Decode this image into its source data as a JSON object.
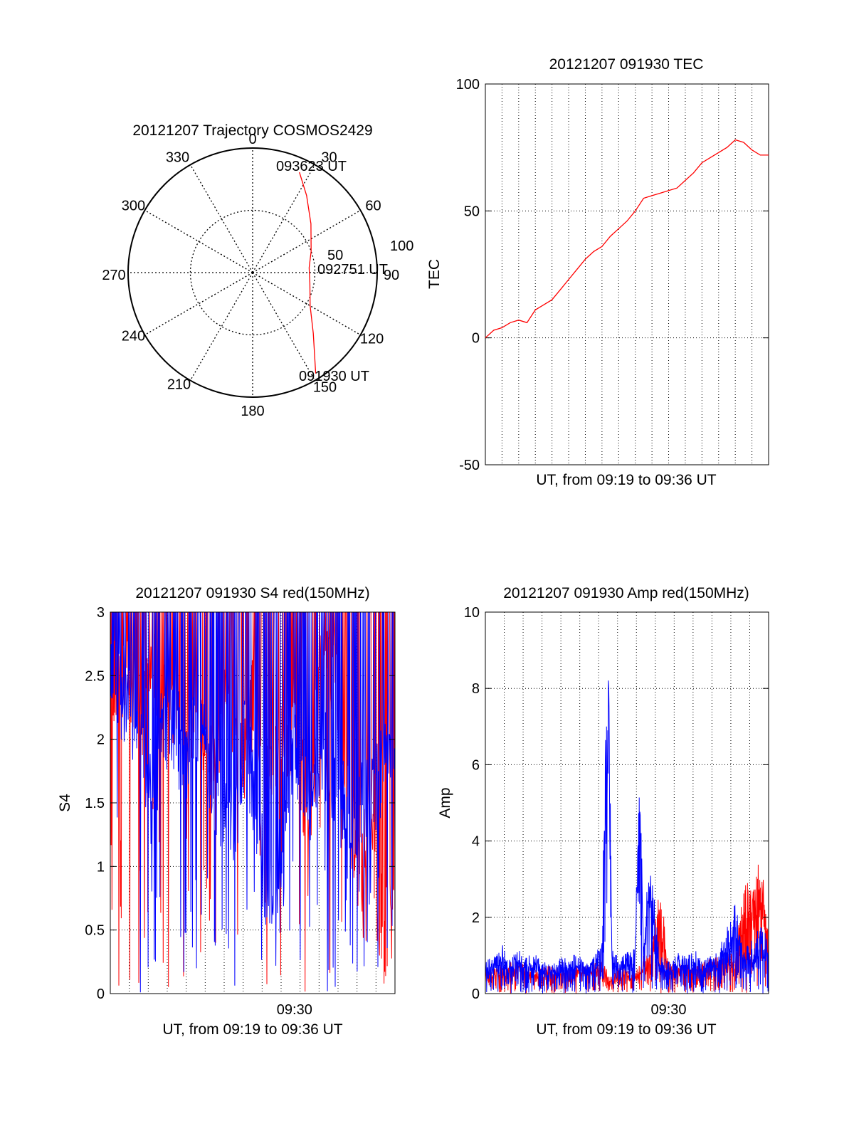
{
  "chart_data": [
    {
      "type": "polar",
      "title": "20121207 Trajectory COSMOS2429",
      "azimuth_labels": [
        "0",
        "30",
        "60",
        "90",
        "120",
        "150",
        "180",
        "210",
        "240",
        "270",
        "300",
        "330"
      ],
      "radial_labels": [
        "50",
        "100"
      ],
      "radial_max": 100,
      "track": {
        "color": "#ff0000",
        "points": [
          {
            "az": 25,
            "el": 10
          },
          {
            "az": 35,
            "el": 22
          },
          {
            "az": 50,
            "el": 35
          },
          {
            "az": 70,
            "el": 45
          },
          {
            "az": 85,
            "el": 49
          },
          {
            "az": 100,
            "el": 48
          },
          {
            "az": 120,
            "el": 42
          },
          {
            "az": 135,
            "el": 28
          },
          {
            "az": 148,
            "el": 4
          }
        ],
        "labels": [
          "093623 UT",
          "092751 UT",
          "091930 UT"
        ]
      }
    },
    {
      "type": "line",
      "title": "20121207 091930 TEC",
      "xlabel": "UT, from 09:19 to 09:36 UT",
      "ylabel": "TEC",
      "ylim": [
        -50,
        100
      ],
      "yticks": [
        "-50",
        "0",
        "50",
        "100"
      ],
      "xlim": [
        0,
        17
      ],
      "grid": true,
      "series": [
        {
          "color": "#ff0000",
          "x": [
            0,
            0.5,
            1,
            1.5,
            2,
            2.5,
            3,
            3.5,
            4,
            4.5,
            5,
            5.5,
            6,
            6.5,
            7,
            7.5,
            8,
            8.5,
            9,
            9.5,
            10,
            10.5,
            11,
            11.5,
            12,
            12.5,
            13,
            13.5,
            14,
            14.5,
            15,
            15.5,
            16,
            16.5,
            17
          ],
          "values": [
            0,
            3,
            4,
            6,
            7,
            6,
            11,
            13,
            15,
            19,
            23,
            27,
            31,
            34,
            36,
            40,
            43,
            46,
            50,
            55,
            56,
            57,
            58,
            59,
            62,
            65,
            69,
            71,
            73,
            75,
            78,
            77,
            74,
            72,
            72
          ]
        }
      ]
    },
    {
      "type": "line",
      "title": "20121207 091930 S4 red(150MHz)",
      "xlabel": "UT, from 09:19 to 09:36 UT",
      "ylabel": "S4",
      "ylim": [
        0,
        3
      ],
      "yticks": [
        "0",
        "0.5",
        "1",
        "1.5",
        "2",
        "2.5",
        "3"
      ],
      "xticks": [
        {
          "x": 11,
          "label": "09:30"
        }
      ],
      "xlim": [
        0,
        17
      ],
      "grid": true,
      "series": [
        {
          "color": "#ff0000",
          "x": [
            0,
            0.5,
            1,
            1.5,
            2,
            2.5,
            3,
            3.5,
            4,
            4.5,
            5,
            5.5,
            6,
            6.5,
            7,
            7.5,
            8,
            8.5,
            9,
            9.5,
            10,
            10.5,
            11,
            11.5,
            12,
            12.5,
            13,
            13.5,
            14,
            14.5,
            15,
            15.5,
            16,
            16.5,
            17
          ],
          "values": [
            2.1,
            2.6,
            2.4,
            2.5,
            2.2,
            2.6,
            2.3,
            2.4,
            2.2,
            2.1,
            2.3,
            2.0,
            1.9,
            2.1,
            2.2,
            2.0,
            1.9,
            2.3,
            2.1,
            1.8,
            2.0,
            1.9,
            2.2,
            1.6,
            1.5,
            2.4,
            2.6,
            2.5,
            1.6,
            1.2,
            0.9,
            1.4,
            0.6,
            0.5,
            0.6
          ]
        },
        {
          "color": "#0000ff",
          "x": [
            0,
            0.5,
            1,
            1.5,
            2,
            2.5,
            3,
            3.5,
            4,
            4.5,
            5,
            5.5,
            6,
            6.5,
            7,
            7.5,
            8,
            8.5,
            9,
            9.5,
            10,
            10.5,
            11,
            11.5,
            12,
            12.5,
            13,
            13.5,
            14,
            14.5,
            15,
            15.5,
            16,
            16.5,
            17
          ],
          "values": [
            2.5,
            2.4,
            2.2,
            2.1,
            1.7,
            1.5,
            2.0,
            2.2,
            2.0,
            1.9,
            2.1,
            2.0,
            1.8,
            1.5,
            1.2,
            1.4,
            2.0,
            1.7,
            1.1,
            0.8,
            0.9,
            1.6,
            1.8,
            1.7,
            1.5,
            1.9,
            1.8,
            1.7,
            1.4,
            1.0,
            1.5,
            1.6,
            1.7,
            1.8,
            1.5
          ]
        }
      ]
    },
    {
      "type": "line",
      "title": "20121207 091930 Amp red(150MHz)",
      "xlabel": "UT, from 09:19 to 09:36 UT",
      "ylabel": "Amp",
      "ylim": [
        0,
        10
      ],
      "yticks": [
        "0",
        "2",
        "4",
        "6",
        "8",
        "10"
      ],
      "xticks": [
        {
          "x": 11,
          "label": "09:30"
        }
      ],
      "xlim": [
        0,
        17
      ],
      "grid": true,
      "series": [
        {
          "color": "#0000ff",
          "x": [
            0,
            0.5,
            1,
            1.5,
            2,
            2.5,
            3,
            3.5,
            4,
            4.5,
            5,
            5.5,
            6,
            6.5,
            7,
            7.2,
            7.4,
            7.6,
            8,
            8.5,
            9,
            9.2,
            9.5,
            9.8,
            10,
            10.5,
            11,
            11.5,
            12,
            12.5,
            13,
            13.5,
            14,
            14.5,
            15,
            15.5,
            16,
            16.5,
            17
          ],
          "values": [
            0.8,
            0.9,
            1.2,
            0.8,
            1.1,
            0.9,
            1.0,
            0.8,
            0.7,
            0.9,
            0.8,
            1.0,
            0.7,
            0.9,
            1.4,
            7.0,
            8.7,
            1.3,
            0.8,
            1.0,
            1.2,
            6.3,
            1.5,
            3.0,
            2.8,
            0.9,
            0.8,
            1.0,
            0.9,
            1.1,
            0.8,
            0.9,
            1.0,
            1.8,
            2.2,
            1.1,
            1.3,
            1.6,
            1.4
          ]
        },
        {
          "color": "#ff0000",
          "x": [
            0,
            1,
            2,
            3,
            4,
            5,
            6,
            7,
            7.5,
            8,
            9,
            10,
            10.5,
            11,
            12,
            13,
            14,
            15,
            15.5,
            16,
            16.5,
            17
          ],
          "values": [
            0.6,
            0.7,
            0.8,
            0.6,
            0.7,
            0.6,
            0.7,
            0.8,
            0.4,
            0.7,
            0.6,
            1.2,
            2.6,
            0.8,
            0.7,
            0.8,
            0.9,
            1.0,
            2.7,
            2.6,
            3.4,
            1.8
          ]
        }
      ]
    }
  ]
}
